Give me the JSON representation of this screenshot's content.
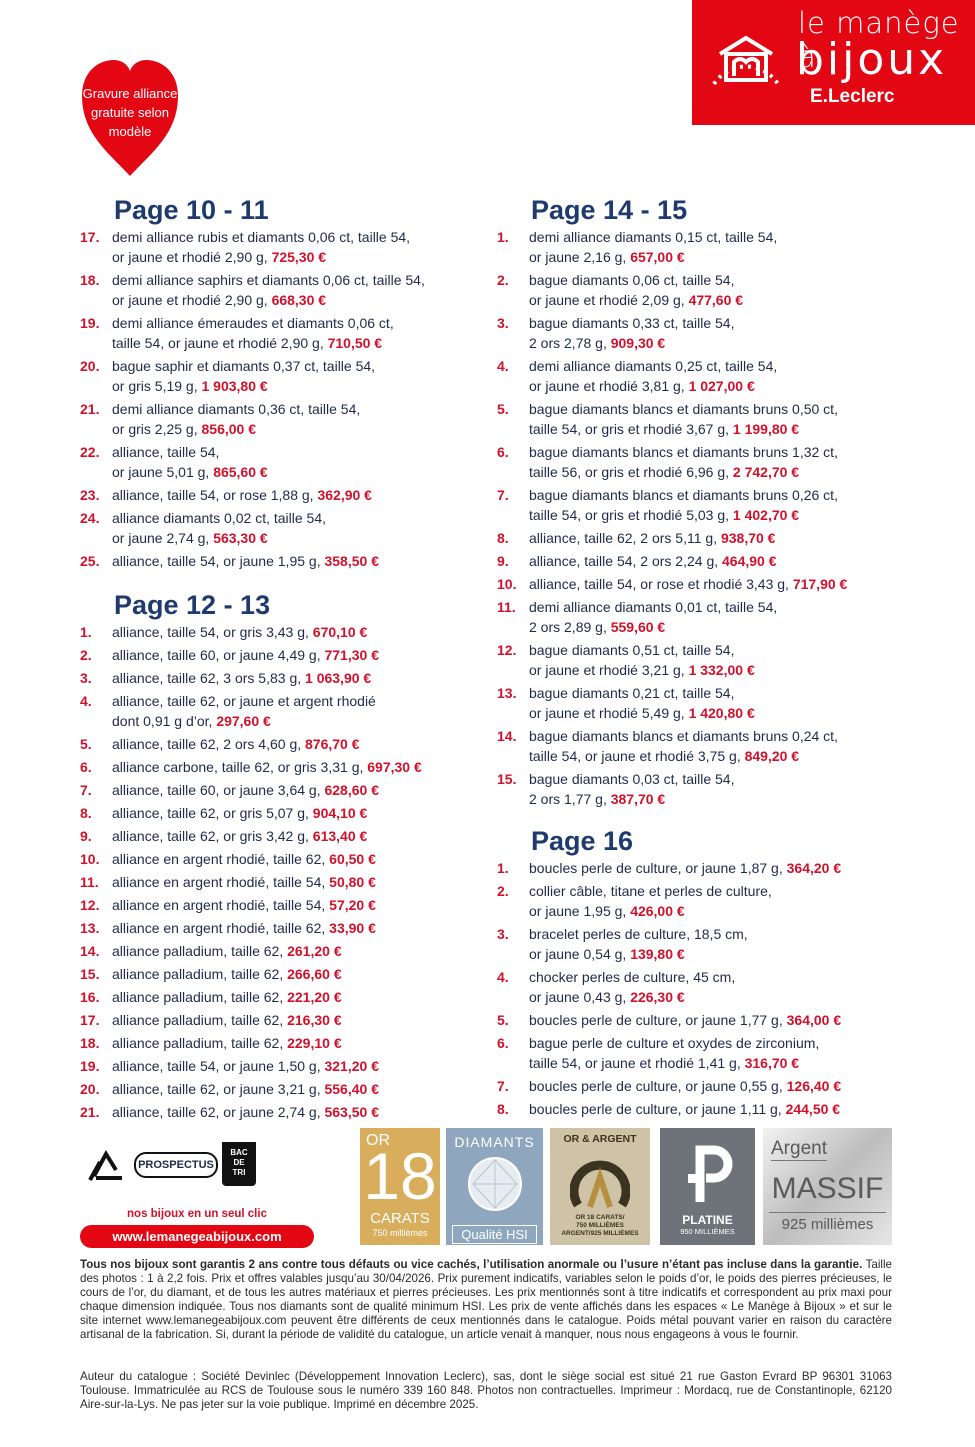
{
  "logo": {
    "line1": "le manège à",
    "line2": "bijoux",
    "brand": "E.Leclerc"
  },
  "heart": {
    "lines": [
      "Gravure alliance",
      "gratuite selon",
      "modèle"
    ]
  },
  "sections": [
    {
      "title": "Page 10 - 11",
      "items": [
        {
          "num": "17.",
          "lines": [
            "demi alliance rubis et diamants 0,06 ct, taille 54,",
            "or jaune et rhodié 2,90 g,"
          ],
          "price": "725,30 €"
        },
        {
          "num": "18.",
          "lines": [
            "demi alliance saphirs et diamants 0,06 ct, taille 54,",
            "or jaune et rhodié 2,90 g,"
          ],
          "price": "668,30 €"
        },
        {
          "num": "19.",
          "lines": [
            "demi alliance émeraudes et diamants 0,06 ct,",
            "taille 54, or jaune et rhodié 2,90 g,"
          ],
          "price": "710,50 €"
        },
        {
          "num": "20.",
          "lines": [
            "bague saphir et diamants 0,37 ct, taille 54,",
            "or gris 5,19 g,"
          ],
          "price": "1 903,80 €"
        },
        {
          "num": "21.",
          "lines": [
            "demi alliance diamants 0,36 ct, taille 54,",
            "or gris 2,25 g,"
          ],
          "price": "856,00 €"
        },
        {
          "num": "22.",
          "lines": [
            "alliance, taille 54,",
            "or jaune 5,01 g,"
          ],
          "price": "865,60 €"
        },
        {
          "num": "23.",
          "lines": [
            "alliance, taille 54, or rose 1,88 g,"
          ],
          "price": "362,90 €"
        },
        {
          "num": "24.",
          "lines": [
            "alliance diamants 0,02 ct, taille 54,",
            "or jaune 2,74 g,"
          ],
          "price": "563,30 €"
        },
        {
          "num": "25.",
          "lines": [
            "alliance, taille 54, or jaune 1,95 g,"
          ],
          "price": "358,50 €"
        }
      ]
    },
    {
      "title": "Page 12 - 13",
      "items": [
        {
          "num": "1.",
          "lines": [
            "alliance, taille 54, or gris 3,43 g,"
          ],
          "price": "670,10 €"
        },
        {
          "num": "2.",
          "lines": [
            "alliance, taille 60, or jaune 4,49 g,"
          ],
          "price": "771,30 €"
        },
        {
          "num": "3.",
          "lines": [
            "alliance, taille 62, 3 ors 5,83 g,"
          ],
          "price": "1 063,90 €"
        },
        {
          "num": "4.",
          "lines": [
            "alliance, taille 62, or jaune et argent rhodié",
            "dont 0,91 g d’or,"
          ],
          "price": "297,60 €"
        },
        {
          "num": "5.",
          "lines": [
            "alliance, taille 62, 2 ors 4,60 g,"
          ],
          "price": "876,70 €"
        },
        {
          "num": "6.",
          "lines": [
            "alliance carbone, taille 62, or gris 3,31 g,"
          ],
          "price": "697,30 €"
        },
        {
          "num": "7.",
          "lines": [
            "alliance, taille 60, or jaune 3,64 g,"
          ],
          "price": "628,60 €"
        },
        {
          "num": "8.",
          "lines": [
            "alliance, taille 62, or gris 5,07 g,"
          ],
          "price": "904,10 €"
        },
        {
          "num": "9.",
          "lines": [
            "alliance, taille 62, or gris 3,42 g,"
          ],
          "price": "613,40 €"
        },
        {
          "num": "10.",
          "lines": [
            "alliance en argent rhodié, taille 62,"
          ],
          "price": "60,50 €"
        },
        {
          "num": "11.",
          "lines": [
            "alliance en argent rhodié, taille 54,"
          ],
          "price": "50,80 €"
        },
        {
          "num": "12.",
          "lines": [
            "alliance en argent rhodié, taille 54,"
          ],
          "price": "57,20 €"
        },
        {
          "num": "13.",
          "lines": [
            "alliance en argent rhodié, taille 62,"
          ],
          "price": "33,90 €"
        },
        {
          "num": "14.",
          "lines": [
            "alliance palladium, taille 62,"
          ],
          "price": "261,20 €"
        },
        {
          "num": "15.",
          "lines": [
            "alliance palladium, taille 62,"
          ],
          "price": "266,60 €"
        },
        {
          "num": "16.",
          "lines": [
            "alliance palladium, taille 62,"
          ],
          "price": "221,20 €"
        },
        {
          "num": "17.",
          "lines": [
            "alliance palladium, taille 62,"
          ],
          "price": "216,30 €"
        },
        {
          "num": "18.",
          "lines": [
            "alliance palladium, taille 62,"
          ],
          "price": "229,10 €"
        },
        {
          "num": "19.",
          "lines": [
            "alliance, taille 54, or jaune 1,50 g,"
          ],
          "price": "321,20 €"
        },
        {
          "num": "20.",
          "lines": [
            "alliance, taille 62, or jaune 3,21 g,"
          ],
          "price": "556,40 €"
        },
        {
          "num": "21.",
          "lines": [
            "alliance, taille 62, or jaune 2,74 g,"
          ],
          "price": "563,50 €"
        }
      ]
    },
    {
      "title": "Page 14 - 15",
      "items": [
        {
          "num": "1.",
          "lines": [
            "demi alliance diamants 0,15 ct, taille 54,",
            "or jaune 2,16 g,"
          ],
          "price": "657,00 €"
        },
        {
          "num": "2.",
          "lines": [
            "bague diamants 0,06 ct, taille 54,",
            "or jaune et rhodié 2,09 g,"
          ],
          "price": "477,60 €"
        },
        {
          "num": "3.",
          "lines": [
            "bague diamants 0,33 ct, taille 54,",
            "2 ors 2,78 g,"
          ],
          "price": "909,30 €"
        },
        {
          "num": "4.",
          "lines": [
            "demi alliance diamants 0,25 ct, taille 54,",
            "or jaune et rhodié 3,81 g,"
          ],
          "price": "1 027,00 €"
        },
        {
          "num": "5.",
          "lines": [
            "bague diamants blancs et diamants bruns 0,50 ct,",
            "taille 54, or gris et rhodié 3,67 g,"
          ],
          "price": "1 199,80 €"
        },
        {
          "num": "6.",
          "lines": [
            "bague diamants blancs et diamants bruns 1,32 ct,",
            "taille 56, or gris et rhodié 6,96 g,"
          ],
          "price": "2 742,70 €"
        },
        {
          "num": "7.",
          "lines": [
            "bague diamants blancs et diamants bruns 0,26 ct,",
            "taille 54, or gris et rhodié 5,03 g,"
          ],
          "price": "1 402,70 €"
        },
        {
          "num": "8.",
          "lines": [
            "alliance, taille 62, 2 ors 5,11 g,"
          ],
          "price": "938,70 €"
        },
        {
          "num": "9.",
          "lines": [
            "alliance, taille 54, 2 ors 2,24 g,"
          ],
          "price": "464,90 €"
        },
        {
          "num": "10.",
          "lines": [
            "alliance, taille 54, or rose et rhodié 3,43 g,"
          ],
          "price": "717,90 €"
        },
        {
          "num": "11.",
          "lines": [
            "demi alliance diamants 0,01 ct, taille 54,",
            "2 ors 2,89 g,"
          ],
          "price": "559,60 €"
        },
        {
          "num": "12.",
          "lines": [
            "bague diamants 0,51 ct, taille 54,",
            "or jaune et rhodié 3,21 g,"
          ],
          "price": "1 332,00 €"
        },
        {
          "num": "13.",
          "lines": [
            "bague diamants 0,21 ct, taille 54,",
            "or jaune et rhodié 5,49 g,"
          ],
          "price": "1 420,80 €"
        },
        {
          "num": "14.",
          "lines": [
            "bague diamants blancs et diamants bruns 0,24 ct,",
            "taille 54, or jaune et rhodié 3,75 g,"
          ],
          "price": "849,20 €"
        },
        {
          "num": "15.",
          "lines": [
            "bague diamants 0,03 ct, taille 54,",
            "2 ors 1,77 g,"
          ],
          "price": "387,70 €"
        }
      ]
    },
    {
      "title": "Page 16",
      "items": [
        {
          "num": "1.",
          "lines": [
            "boucles perle de culture, or jaune 1,87 g,"
          ],
          "price": "364,20 €"
        },
        {
          "num": "2.",
          "lines": [
            "collier câble, titane et perles de culture,",
            "or jaune 1,95 g,"
          ],
          "price": "426,00 €"
        },
        {
          "num": "3.",
          "lines": [
            "bracelet perles de culture, 18,5 cm,",
            "or jaune 0,54 g,"
          ],
          "price": "139,80 €"
        },
        {
          "num": "4.",
          "lines": [
            "chocker perles de culture, 45 cm,",
            "or jaune 0,43 g,"
          ],
          "price": "226,30 €"
        },
        {
          "num": "5.",
          "lines": [
            "boucles perle de culture, or jaune 1,77 g,"
          ],
          "price": "364,00 €"
        },
        {
          "num": "6.",
          "lines": [
            "bague perle de culture et oxydes de zirconium,",
            "taille 54, or jaune et rhodié 1,41 g,"
          ],
          "price": "316,70 €"
        },
        {
          "num": "7.",
          "lines": [
            "boucles perle de culture, or jaune 0,55 g,"
          ],
          "price": "126,40 €"
        },
        {
          "num": "8.",
          "lines": [
            "boucles perle de culture, or jaune 1,11 g,"
          ],
          "price": "244,50 €"
        }
      ]
    }
  ],
  "recycling": {
    "label": "PROSPECTUS",
    "bin": [
      "BAC",
      "DE",
      "TRI"
    ]
  },
  "web": {
    "tagline": "nos bijoux en un seul clic",
    "url": "www.lemanegeabijoux.com"
  },
  "badges": {
    "gold": {
      "top": "OR",
      "number": "18",
      "unit": "CARATS",
      "sub": "750 millièmes"
    },
    "diamonds": {
      "title": "DIAMANTS",
      "quality": "Qualité HSI"
    },
    "goldsilver": {
      "title": "OR & ARGENT",
      "lines": [
        "OR 18 CARATS/",
        "750 MILLIÈMES",
        "ARGENT/925 MILLIÈMES"
      ]
    },
    "platinum": {
      "title": "PLATINE",
      "sub": "950 MILLIÈMES"
    },
    "silver": {
      "top": "Argent",
      "title": "MASSIF",
      "sub": "925 millièmes"
    }
  },
  "footer": {
    "bold": "Tous nos bijoux sont garantis 2 ans contre tous défauts ou vice cachés, l’utilisation anormale ou l’usure n’étant pas incluse dans la garantie.",
    "text": "Taille des photos : 1 à 2,2 fois. Prix et offres valables jusqu’au 30/04/2026. Prix purement indicatifs, variables selon le poids d’or, le poids des pierres précieuses, le cours de l’or, du diamant, et de tous les autres matériaux et pierres précieuses. Les prix mentionnés sont à titre indicatifs et correspondent au prix maxi pour chaque dimension indiquée. Tous nos diamants sont de qualité minimum HSI. Les prix de vente affichés dans les espaces « Le Manège à Bijoux » et sur le site internet www.lemanegeabijoux.com peuvent être différents de ceux mentionnés dans le catalogue. Poids métal pouvant varier en raison du caractère artisanal de la fabrication. Si, durant la période de validité du catalogue, un article venait à manquer, nous nous engageons à vous le fournir.",
    "legal": "Auteur du catalogue : Société Devinlec (Développement Innovation Leclerc), sas, dont le siège social est situé 21 rue Gaston Evrard BP 96301 31063 Toulouse. Immatriculée au RCS de Toulouse sous le numéro 339 160 848. Photos non contractuelles. Imprimeur : Mordacq, rue de Constantinople, 62120 Aire-sur-la-Lys. Ne pas jeter sur la voie publique. Imprimé en décembre 2025."
  }
}
